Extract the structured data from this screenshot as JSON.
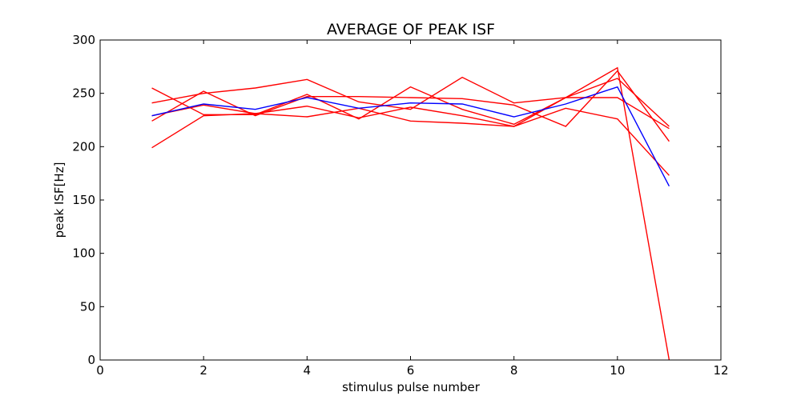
{
  "chart_data": {
    "type": "line",
    "title": "AVERAGE OF PEAK ISF",
    "xlabel": "stimulus pulse number",
    "ylabel": "peak ISF[Hz]",
    "xlim": [
      0,
      12
    ],
    "ylim": [
      0,
      300
    ],
    "xticks": [
      "0",
      "2",
      "4",
      "6",
      "8",
      "10",
      "12"
    ],
    "yticks": [
      "0",
      "50",
      "100",
      "150",
      "200",
      "250",
      "300"
    ],
    "grid": false,
    "legend": "none",
    "x": [
      1,
      2,
      3,
      4,
      5,
      6,
      7,
      8,
      9,
      10,
      11
    ],
    "series": [
      {
        "color": "#ff0000",
        "values": [
          255,
          230,
          230,
          249,
          226,
          256,
          235,
          221,
          246,
          274,
          0
        ]
      },
      {
        "color": "#ff0000",
        "values": [
          241,
          250,
          255,
          263,
          242,
          235,
          265,
          241,
          246,
          264,
          219
        ]
      },
      {
        "color": "#ff0000",
        "values": [
          224,
          252,
          229,
          247,
          247,
          246,
          245,
          239,
          219,
          271,
          205
        ]
      },
      {
        "color": "#ff0000",
        "values": [
          199,
          229,
          231,
          228,
          236,
          224,
          222,
          219,
          236,
          226,
          173
        ]
      },
      {
        "color": "#ff0000",
        "values": [
          229,
          239,
          231,
          238,
          227,
          237,
          229,
          219,
          246,
          246,
          217
        ]
      },
      {
        "color": "#0000ff",
        "values": [
          229,
          240,
          235,
          246,
          236,
          241,
          240,
          228,
          240,
          256,
          163
        ]
      }
    ]
  }
}
